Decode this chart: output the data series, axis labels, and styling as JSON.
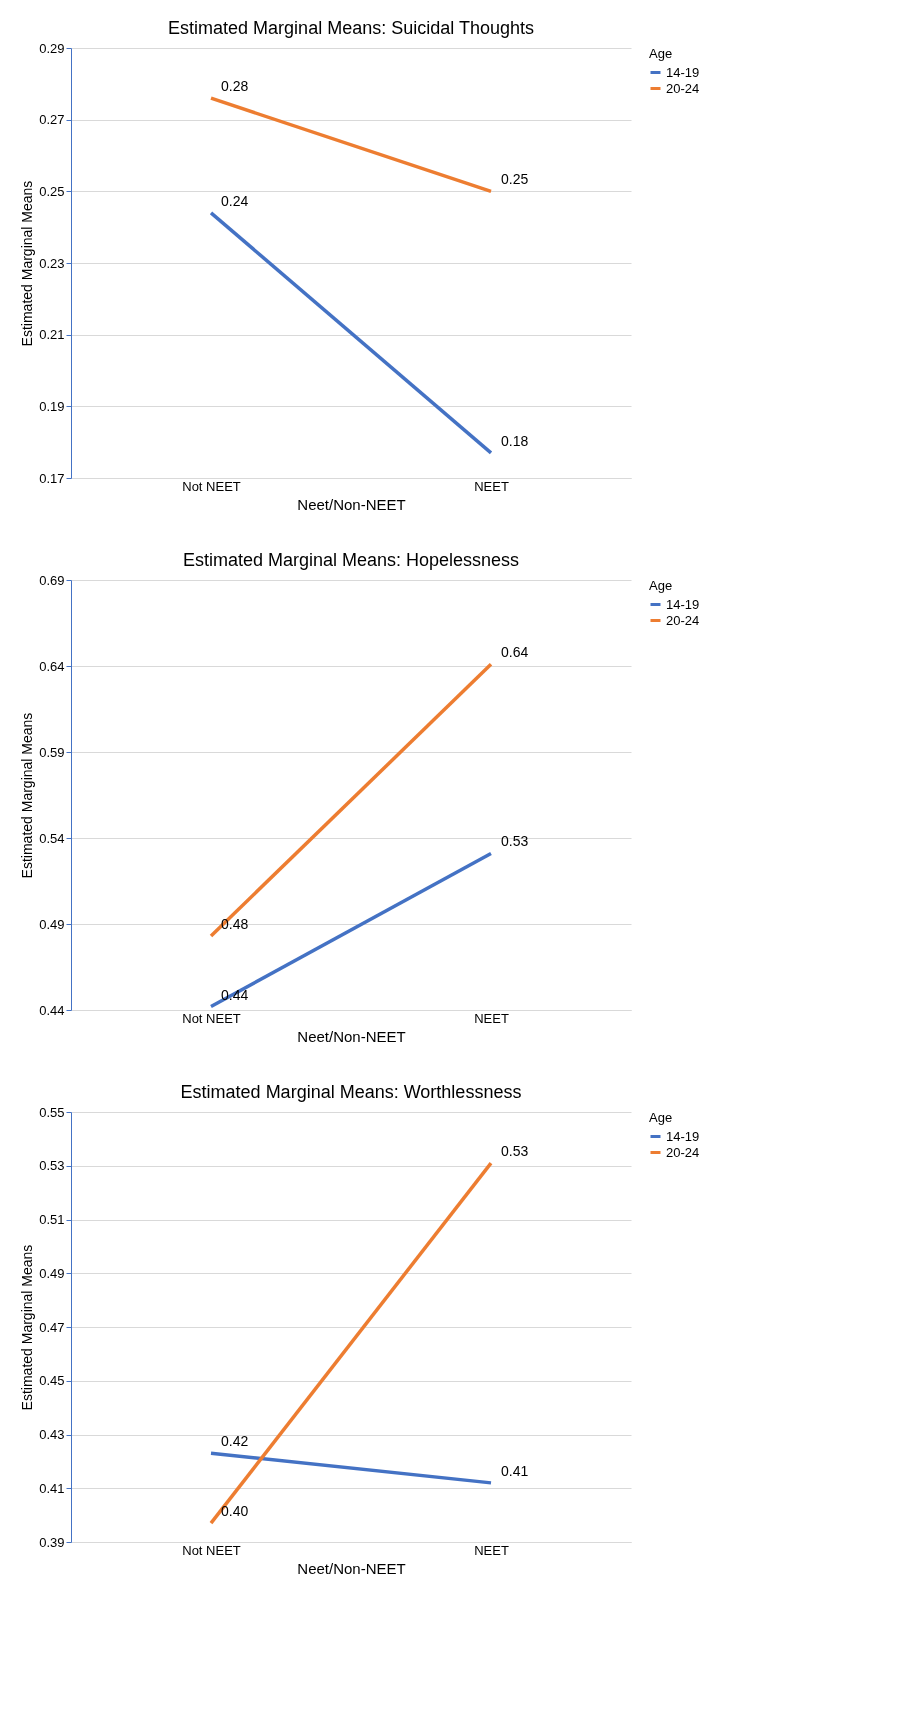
{
  "chart_data": [
    {
      "type": "line",
      "title": "Estimated Marginal Means: Suicidal Thoughts",
      "xlabel": "Neet/Non-NEET",
      "ylabel": "Estimated Marginal Means",
      "legend_title": "Age",
      "legend": "right",
      "grid": "y",
      "categories": [
        "Not NEET",
        "NEET"
      ],
      "ylim": [
        0.17,
        0.29
      ],
      "yticks": [
        0.17,
        0.19,
        0.21,
        0.23,
        0.25,
        0.27,
        0.29
      ],
      "series": [
        {
          "name": "14-19",
          "color": "#4472c4",
          "values": [
            0.244,
            0.177
          ],
          "value_labels": [
            "0.24",
            "0.18"
          ]
        },
        {
          "name": "20-24",
          "color": "#ed7d31",
          "values": [
            0.276,
            0.25
          ],
          "value_labels": [
            "0.28",
            "0.25"
          ]
        }
      ]
    },
    {
      "type": "line",
      "title": "Estimated Marginal Means: Hopelessness",
      "xlabel": "Neet/Non-NEET",
      "ylabel": "Estimated Marginal Means",
      "legend_title": "Age",
      "legend": "right",
      "grid": "y",
      "categories": [
        "Not NEET",
        "NEET"
      ],
      "ylim": [
        0.44,
        0.69
      ],
      "yticks": [
        0.44,
        0.49,
        0.54,
        0.59,
        0.64,
        0.69
      ],
      "series": [
        {
          "name": "14-19",
          "color": "#4472c4",
          "values": [
            0.442,
            0.531
          ],
          "value_labels": [
            "0.44",
            "0.53"
          ]
        },
        {
          "name": "20-24",
          "color": "#ed7d31",
          "values": [
            0.483,
            0.641
          ],
          "value_labels": [
            "0.48",
            "0.64"
          ]
        }
      ]
    },
    {
      "type": "line",
      "title": "Estimated Marginal Means: Worthlessness",
      "xlabel": "Neet/Non-NEET",
      "ylabel": "Estimated Marginal Means",
      "legend_title": "Age",
      "legend": "right",
      "grid": "y",
      "categories": [
        "Not NEET",
        "NEET"
      ],
      "ylim": [
        0.39,
        0.55
      ],
      "yticks": [
        0.39,
        0.41,
        0.43,
        0.45,
        0.47,
        0.49,
        0.51,
        0.53,
        0.55
      ],
      "series": [
        {
          "name": "14-19",
          "color": "#4472c4",
          "values": [
            0.423,
            0.412
          ],
          "value_labels": [
            "0.42",
            "0.41"
          ]
        },
        {
          "name": "20-24",
          "color": "#ed7d31",
          "values": [
            0.397,
            0.531
          ],
          "value_labels": [
            "0.40",
            "0.53"
          ]
        }
      ]
    }
  ]
}
